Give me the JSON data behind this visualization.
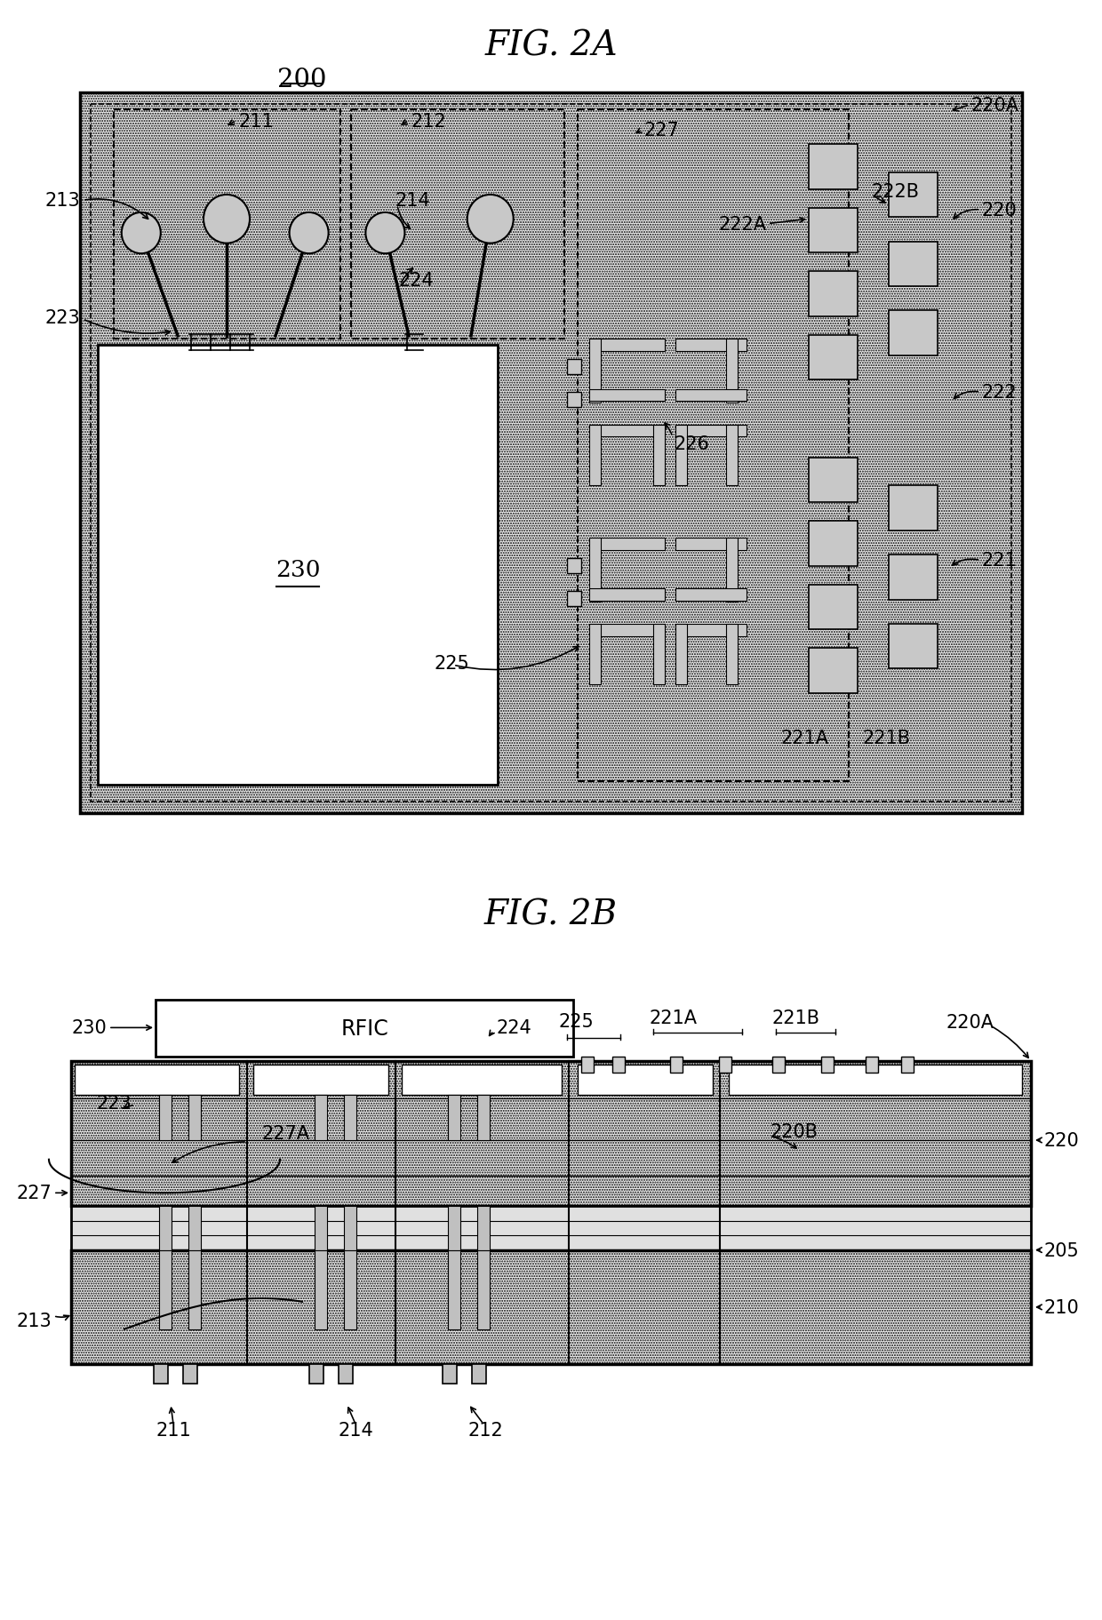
{
  "fig_title_2a": "FIG. 2A",
  "fig_title_2b": "FIG. 2B",
  "label_200": "200",
  "label_220": "220",
  "label_220A": "220A",
  "label_220B": "220B",
  "label_221": "221",
  "label_221A": "221A",
  "label_221B": "221B",
  "label_222": "222",
  "label_222A": "222A",
  "label_222B": "222B",
  "label_223": "223",
  "label_224": "224",
  "label_225": "225",
  "label_226": "226",
  "label_227": "227",
  "label_227A": "227A",
  "label_211": "211",
  "label_212": "212",
  "label_213": "213",
  "label_214": "214",
  "label_230": "230",
  "label_205": "205",
  "label_210": "210",
  "label_rfic": "RFIC",
  "black": "#000000",
  "white": "#ffffff",
  "light_gray": "#d8d8d8",
  "dot_bg": "#eeeeee"
}
